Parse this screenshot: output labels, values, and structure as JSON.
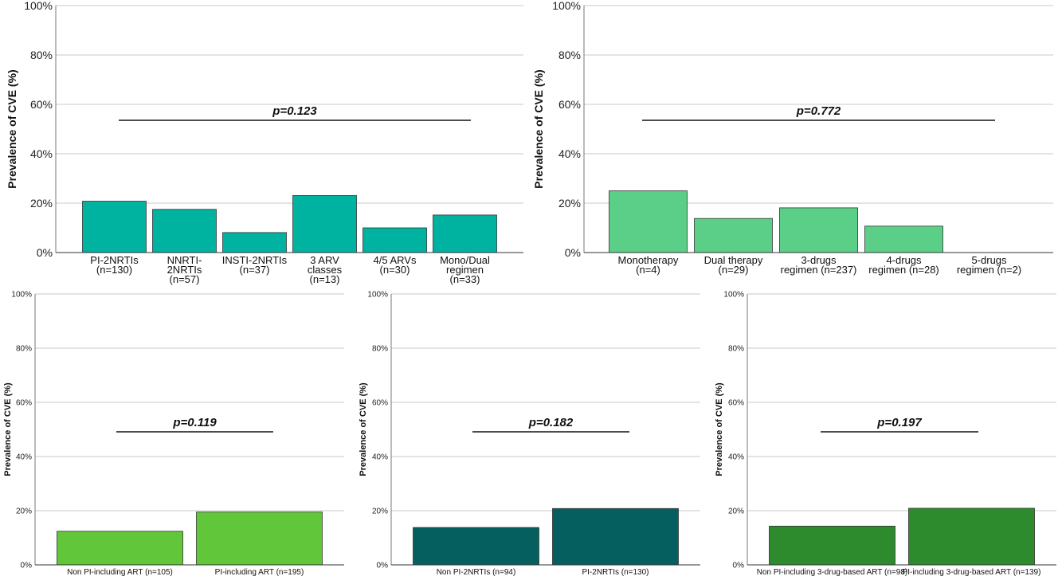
{
  "chart_data": [
    {
      "type": "bar",
      "ylabel": "Prevalence of CVE (%)",
      "ylim": [
        0,
        100
      ],
      "yticks": [
        "0%",
        "20%",
        "40%",
        "60%",
        "80%",
        "100%"
      ],
      "grid": true,
      "categories": [
        [
          "PI-2NRTIs",
          "(n=130)"
        ],
        [
          "NNRTI-",
          "2NRTIs",
          "(n=57)"
        ],
        [
          "INSTI-2NRTIs",
          "(n=37)"
        ],
        [
          "3 ARV",
          "classes",
          "(n=13)"
        ],
        [
          "4/5 ARVs",
          "(n=30)"
        ],
        [
          "Mono/Dual",
          "regimen",
          "(n=33)"
        ]
      ],
      "values": [
        20.8,
        17.5,
        8.1,
        23.1,
        10.0,
        15.2
      ],
      "bar_color": "#00b3a0",
      "annotation": "p=0.123"
    },
    {
      "type": "bar",
      "ylabel": "Prevalence of CVE (%)",
      "ylim": [
        0,
        100
      ],
      "yticks": [
        "0%",
        "20%",
        "40%",
        "60%",
        "80%",
        "100%"
      ],
      "grid": true,
      "categories": [
        [
          "Monotherapy",
          "(n=4)"
        ],
        [
          "Dual therapy",
          "(n=29)"
        ],
        [
          "3-drugs",
          "regimen (n=237)"
        ],
        [
          "4-drugs",
          "regimen (n=28)"
        ],
        [
          "5-drugs",
          "regimen (n=2)"
        ]
      ],
      "values": [
        25.0,
        13.8,
        18.1,
        10.7,
        0
      ],
      "bar_color": "#5bcf88",
      "annotation": "p=0.772"
    },
    {
      "type": "bar",
      "ylabel": "Prevalence of CVE (%)",
      "ylim": [
        0,
        100
      ],
      "yticks": [
        "0%",
        "20%",
        "40%",
        "60%",
        "80%",
        "100%"
      ],
      "grid": true,
      "categories": [
        [
          "Non PI-including ART (n=105)"
        ],
        [
          "PI-including ART (n=195)"
        ]
      ],
      "values": [
        12.4,
        19.5
      ],
      "bar_color": "#62c63a",
      "annotation": "p=0.119"
    },
    {
      "type": "bar",
      "ylabel": "Prevalence of CVE (%)",
      "ylim": [
        0,
        100
      ],
      "yticks": [
        "0%",
        "20%",
        "40%",
        "60%",
        "80%",
        "100%"
      ],
      "grid": true,
      "categories": [
        [
          "Non PI-2NRTIs (n=94)"
        ],
        [
          "PI-2NRTIs (n=130)"
        ]
      ],
      "values": [
        13.8,
        20.8
      ],
      "bar_color": "#055f5e",
      "annotation": "p=0.182"
    },
    {
      "type": "bar",
      "ylabel": "Prevalence of CVE (%)",
      "ylim": [
        0,
        100
      ],
      "yticks": [
        "0%",
        "20%",
        "40%",
        "60%",
        "80%",
        "100%"
      ],
      "grid": true,
      "categories": [
        [
          "Non PI-including 3-drug-based ART (n=98)"
        ],
        [
          "PI-including 3-drug-based ART (n=139)"
        ]
      ],
      "values": [
        14.3,
        20.9
      ],
      "bar_color": "#2d8a2d",
      "annotation": "p=0.197"
    }
  ]
}
